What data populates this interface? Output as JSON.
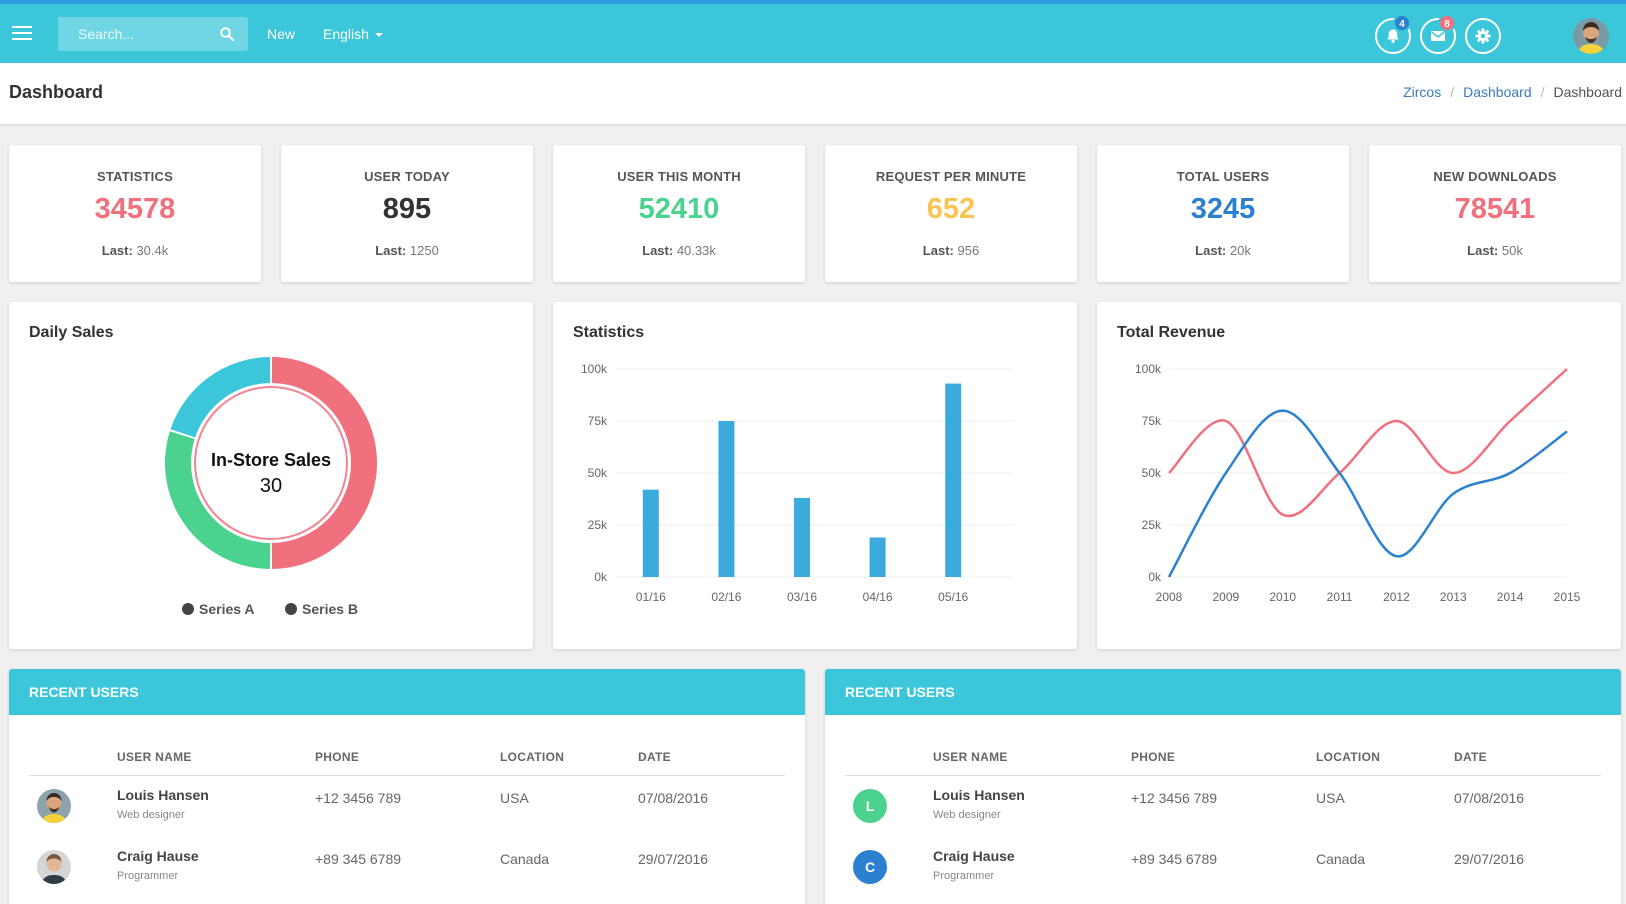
{
  "topbar": {
    "search_placeholder": "Search...",
    "new_label": "New",
    "language_label": "English",
    "notifications_count": "4",
    "messages_count": "8"
  },
  "colors": {
    "topbar": "#3bc7d9",
    "pink": "#f0707e",
    "green": "#4cd28f",
    "yellow": "#f8c552",
    "blue": "#2c80d0",
    "dark": "#333333",
    "bar": "#3aabdc"
  },
  "header": {
    "title": "Dashboard",
    "breadcrumb": [
      "Zircos",
      "Dashboard",
      "Dashboard"
    ]
  },
  "stats": [
    {
      "label": "STATISTICS",
      "value": "34578",
      "last_label": "Last:",
      "last_value": "30.4k",
      "color": "#f0707e"
    },
    {
      "label": "USER TODAY",
      "value": "895",
      "last_label": "Last:",
      "last_value": "1250",
      "color": "#333333"
    },
    {
      "label": "USER THIS MONTH",
      "value": "52410",
      "last_label": "Last:",
      "last_value": "40.33k",
      "color": "#4cd28f"
    },
    {
      "label": "REQUEST PER MINUTE",
      "value": "652",
      "last_label": "Last:",
      "last_value": "956",
      "color": "#f8c552"
    },
    {
      "label": "TOTAL USERS",
      "value": "3245",
      "last_label": "Last:",
      "last_value": "20k",
      "color": "#2c80d0"
    },
    {
      "label": "NEW DOWNLOADS",
      "value": "78541",
      "last_label": "Last:",
      "last_value": "50k",
      "color": "#f0707e"
    }
  ],
  "panels": {
    "daily_sales": {
      "title": "Daily Sales",
      "center_label": "In-Store Sales",
      "center_value": "30",
      "legend": [
        "Series A",
        "Series B"
      ]
    },
    "statistics": {
      "title": "Statistics"
    },
    "total_revenue": {
      "title": "Total Revenue"
    }
  },
  "chart_data": [
    {
      "type": "pie",
      "title": "Daily Sales",
      "donut": true,
      "slices": [
        {
          "name": "In-Store Sales",
          "value": 30,
          "color": "#4cd28f"
        },
        {
          "value": 20,
          "color": "#3bc7d9"
        },
        {
          "value": 50,
          "color": "#f0707e"
        }
      ],
      "legend": [
        "Series A",
        "Series B"
      ]
    },
    {
      "type": "bar",
      "title": "Statistics",
      "categories": [
        "01/16",
        "02/16",
        "03/16",
        "04/16",
        "05/16"
      ],
      "values": [
        42,
        75,
        38,
        19,
        93
      ],
      "yticks": [
        "0k",
        "25k",
        "50k",
        "75k",
        "100k"
      ],
      "ylim": [
        0,
        100
      ],
      "color": "#3aabdc"
    },
    {
      "type": "line",
      "title": "Total Revenue",
      "x": [
        "2008",
        "2009",
        "2010",
        "2011",
        "2012",
        "2013",
        "2014",
        "2015"
      ],
      "yticks": [
        "0k",
        "25k",
        "50k",
        "75k",
        "100k"
      ],
      "ylim": [
        0,
        100
      ],
      "series": [
        {
          "values": [
            50,
            75,
            30,
            50,
            75,
            50,
            75,
            100
          ],
          "color": "#f0707e"
        },
        {
          "values": [
            0,
            50,
            80,
            50,
            10,
            40,
            50,
            70
          ],
          "color": "#2c80d0"
        }
      ]
    }
  ],
  "recent_users_tables": [
    {
      "title": "RECENT USERS",
      "columns": [
        "USER NAME",
        "PHONE",
        "LOCATION",
        "DATE"
      ],
      "rows": [
        {
          "avatar": "photo",
          "name": "Louis Hansen",
          "role": "Web designer",
          "phone": "+12 3456 789",
          "location": "USA",
          "date": "07/08/2016"
        },
        {
          "avatar": "photo",
          "name": "Craig Hause",
          "role": "Programmer",
          "phone": "+89 345 6789",
          "location": "Canada",
          "date": "29/07/2016"
        }
      ]
    },
    {
      "title": "RECENT USERS",
      "columns": [
        "USER NAME",
        "PHONE",
        "LOCATION",
        "DATE"
      ],
      "rows": [
        {
          "avatar": "L",
          "avatar_color": "#4cd28f",
          "name": "Louis Hansen",
          "role": "Web designer",
          "phone": "+12 3456 789",
          "location": "USA",
          "date": "07/08/2016"
        },
        {
          "avatar": "C",
          "avatar_color": "#2c80d0",
          "name": "Craig Hause",
          "role": "Programmer",
          "phone": "+89 345 6789",
          "location": "Canada",
          "date": "29/07/2016"
        }
      ]
    }
  ]
}
